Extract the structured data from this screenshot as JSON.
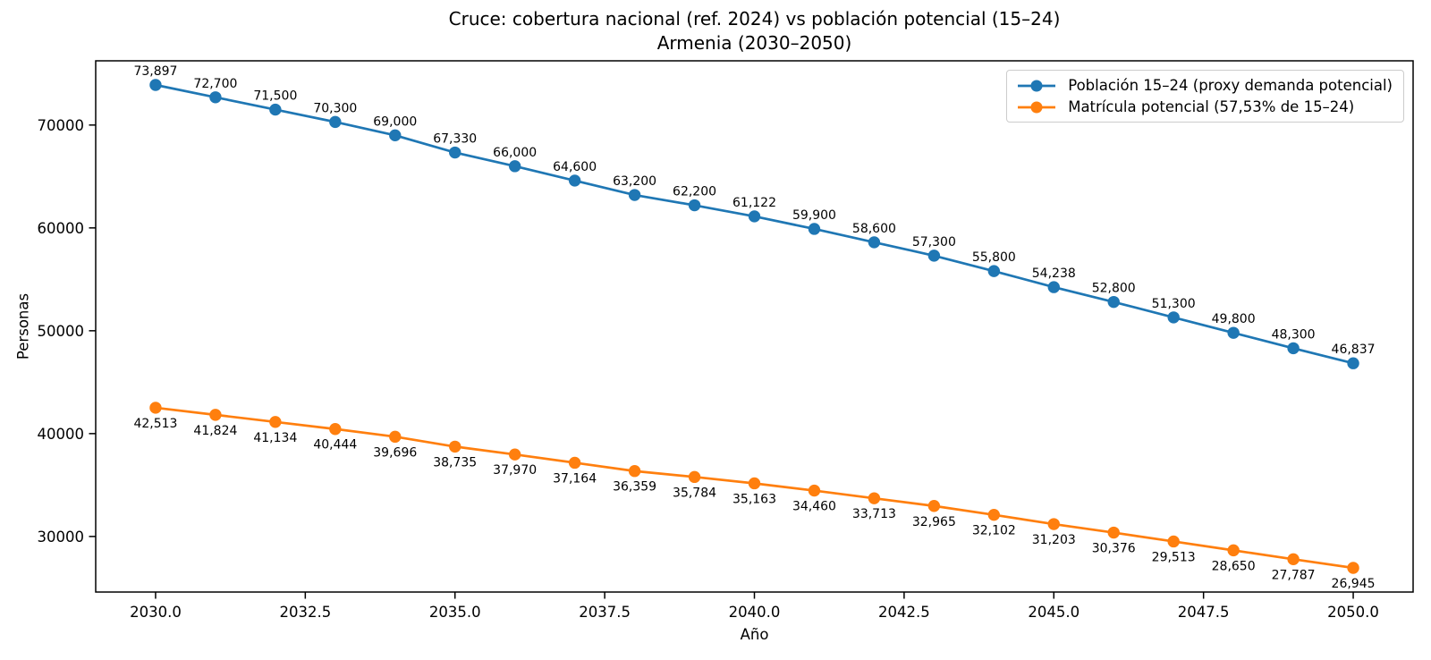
{
  "chart_data": {
    "type": "line",
    "title_line1": "Cruce: cobertura nacional (ref. 2024) vs población potencial (15–24)",
    "title_line2": "Armenia (2030–2050)",
    "xlabel": "Año",
    "ylabel": "Personas",
    "x": [
      2030,
      2031,
      2032,
      2033,
      2034,
      2035,
      2036,
      2037,
      2038,
      2039,
      2040,
      2041,
      2042,
      2043,
      2044,
      2045,
      2046,
      2047,
      2048,
      2049,
      2050
    ],
    "series": [
      {
        "name": "Población 15–24 (proxy demanda potencial)",
        "color": "#1f77b4",
        "label_position": "above",
        "values": [
          73897,
          72700,
          71500,
          70300,
          69000,
          67330,
          66000,
          64600,
          63200,
          62200,
          61122,
          59900,
          58600,
          57300,
          55800,
          54238,
          52800,
          51300,
          49800,
          48300,
          46837
        ]
      },
      {
        "name": "Matrícula potencial (57,53% de 15–24)",
        "color": "#ff7f0e",
        "label_position": "below",
        "values": [
          42513,
          41824,
          41134,
          40444,
          39696,
          38735,
          37970,
          37164,
          36359,
          35784,
          35163,
          34460,
          33713,
          32965,
          32102,
          31203,
          30376,
          29513,
          28650,
          27787,
          26945
        ]
      }
    ],
    "xticks": [
      2030.0,
      2032.5,
      2035.0,
      2037.5,
      2040.0,
      2042.5,
      2045.0,
      2047.5,
      2050.0
    ],
    "xtick_labels": [
      "2030.0",
      "2032.5",
      "2035.0",
      "2037.5",
      "2040.0",
      "2042.5",
      "2045.0",
      "2047.5",
      "2050.0"
    ],
    "yticks": [
      30000,
      40000,
      50000,
      60000,
      70000
    ],
    "ytick_labels": [
      "30000",
      "40000",
      "50000",
      "60000",
      "70000"
    ],
    "xlim": [
      2029,
      2051
    ],
    "ylim": [
      24597,
      76245
    ],
    "grid": false,
    "legend_position": "top-right"
  }
}
